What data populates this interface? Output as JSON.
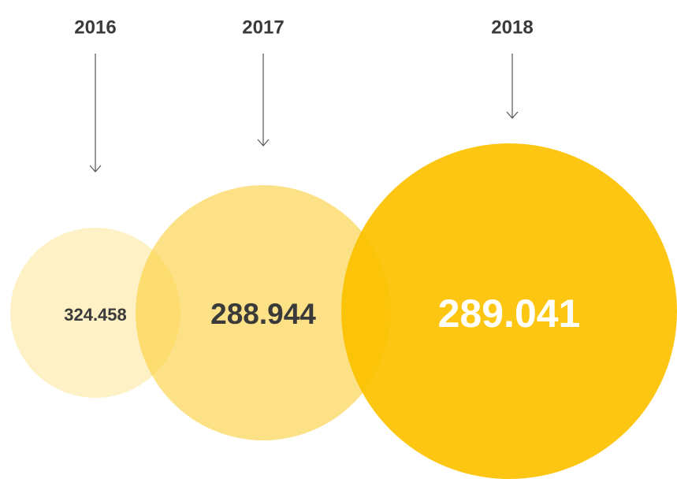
{
  "nodes": [
    {
      "year": "2016",
      "value": "324.458"
    },
    {
      "year": "2017",
      "value": "288.944"
    },
    {
      "year": "2018",
      "value": "289.041"
    }
  ]
}
